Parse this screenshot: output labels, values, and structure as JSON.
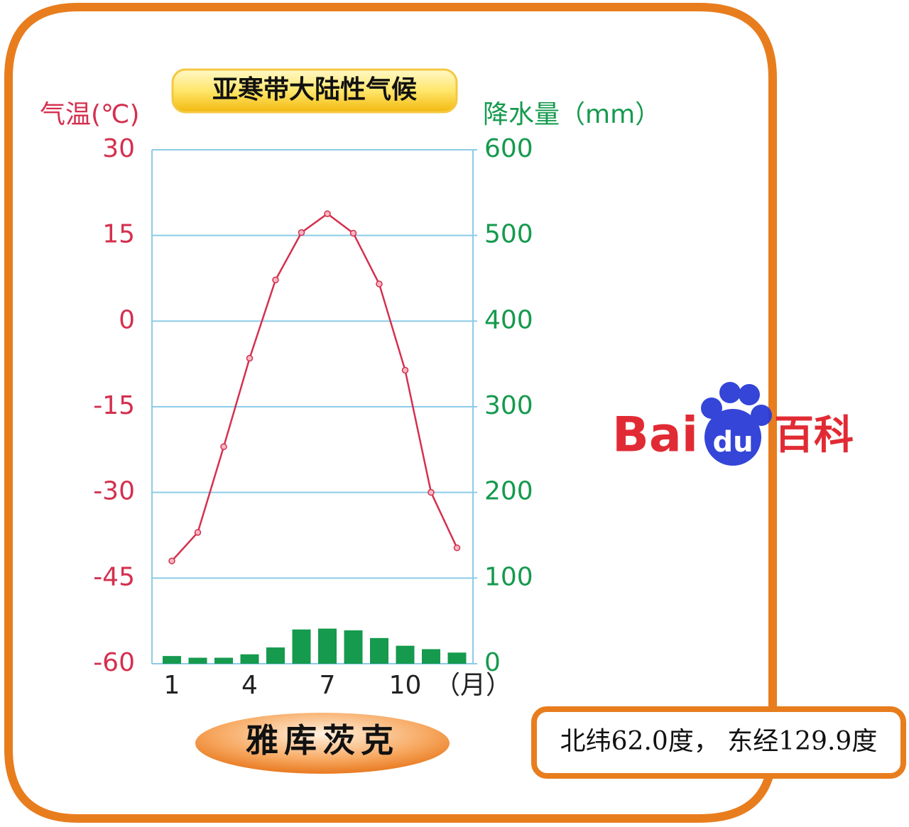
{
  "chart_data": {
    "type": "climate",
    "title": "亚寒带大陆性气候",
    "y_label": "气温(℃)",
    "y2_label": "降水量（mm）",
    "x_unit": "（月）",
    "station": "雅库茨克",
    "location": "北纬62.0度， 东经129.9度",
    "watermark": [
      "Bai",
      "du",
      "百科"
    ],
    "categories": [
      "1",
      null,
      null,
      "4",
      null,
      null,
      "7",
      null,
      null,
      "10",
      null,
      null
    ],
    "ylim": [
      -60,
      30
    ],
    "yticks": [
      -60,
      -45,
      -30,
      -15,
      0,
      15,
      30
    ],
    "y2lim": [
      0,
      600
    ],
    "y2ticks": [
      0,
      100,
      200,
      300,
      400,
      500,
      600
    ],
    "grid": true,
    "series": [
      {
        "name": "气温",
        "type": "line",
        "color": "#d4304f",
        "values": [
          -42,
          -37,
          -22,
          -6.5,
          7.2,
          15.5,
          18.8,
          15.4,
          6.5,
          -8.6,
          -30,
          -39.7
        ]
      },
      {
        "name": "降水量",
        "type": "bar",
        "axis": "y2",
        "color": "#159a4e",
        "values": [
          9,
          7,
          7,
          11,
          19,
          40,
          41,
          39,
          30,
          21,
          17,
          13
        ]
      }
    ]
  }
}
